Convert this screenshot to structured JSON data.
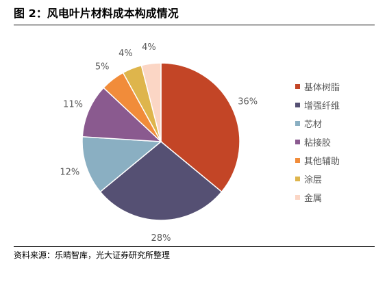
{
  "title": "图 2：风电叶片材料成本构成情况",
  "source": "资料来源：乐晴智库，光大证券研究所整理",
  "chart_data": {
    "type": "pie",
    "categories": [
      "基体树脂",
      "增强纤维",
      "芯材",
      "粘接胶",
      "其他辅助",
      "涂层",
      "金属"
    ],
    "values": [
      36,
      28,
      12,
      11,
      5,
      4,
      4
    ],
    "labels": [
      "36%",
      "28%",
      "12%",
      "11%",
      "5%",
      "4%",
      "4%"
    ],
    "colors": [
      "#C34526",
      "#555073",
      "#8AAFC2",
      "#8A5A8F",
      "#F18C3A",
      "#DEB54C",
      "#FBD6C5"
    ],
    "legend_position": "right"
  }
}
